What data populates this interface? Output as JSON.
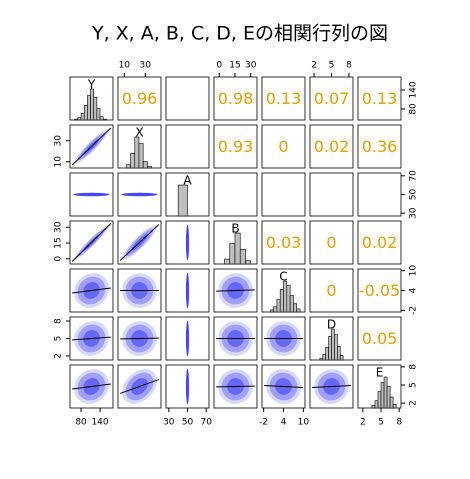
{
  "chart_data": {
    "type": "pairs",
    "title": "Y, X, A, B, C, D, Eの相関行列の図",
    "variables": [
      {
        "name": "Y",
        "lim": [
          45,
          181
        ],
        "ticks": [
          80,
          140
        ],
        "bins": [
          60,
          70,
          80,
          90,
          100,
          110,
          120,
          130,
          140,
          150,
          160
        ],
        "counts": [
          1,
          3,
          8,
          18,
          30,
          38,
          28,
          14,
          4,
          1
        ]
      },
      {
        "name": "X",
        "lim": [
          4,
          45
        ],
        "ticks": [
          10,
          30
        ],
        "bins": [
          12,
          16,
          20,
          24,
          28,
          32,
          36
        ],
        "counts": [
          4,
          18,
          38,
          30,
          8,
          2
        ]
      },
      {
        "name": "A",
        "lim": [
          27,
          73
        ],
        "ticks": [
          30,
          50,
          70
        ],
        "bins": [
          40,
          50
        ],
        "counts": [
          1
        ]
      },
      {
        "name": "B",
        "lim": [
          -5,
          36
        ],
        "ticks": [
          0,
          15,
          30
        ],
        "bins": [
          5,
          10,
          15,
          20,
          25,
          30
        ],
        "counts": [
          6,
          25,
          38,
          18,
          4
        ]
      },
      {
        "name": "C",
        "lim": [
          -2.5,
          10.5
        ],
        "ticks": [
          -2,
          4,
          10
        ],
        "bins": [
          0,
          1,
          2,
          3,
          4,
          5,
          6,
          7,
          8,
          9
        ],
        "counts": [
          2,
          5,
          12,
          22,
          30,
          26,
          16,
          8,
          3
        ]
      },
      {
        "name": "D",
        "lim": [
          1.3,
          8.7
        ],
        "ticks": [
          2,
          5,
          8
        ],
        "bins": [
          3,
          3.5,
          4,
          4.5,
          5,
          5.5,
          6,
          6.5,
          7
        ],
        "counts": [
          2,
          6,
          14,
          26,
          34,
          28,
          15,
          5
        ]
      },
      {
        "name": "E",
        "lim": [
          1.2,
          8.3
        ],
        "ticks": [
          2,
          5,
          8
        ],
        "bins": [
          3.5,
          4,
          4.5,
          5,
          5.5,
          6,
          6.5,
          7,
          7.5
        ],
        "counts": [
          3,
          8,
          18,
          28,
          34,
          24,
          12,
          4
        ]
      }
    ],
    "correlations": [
      [
        0.96,
        null,
        0.98,
        0.13,
        0.07,
        0.13
      ],
      [
        null,
        0.93,
        0,
        0.02,
        0.36
      ],
      [
        null,
        null,
        null,
        null
      ],
      [
        0.03,
        0,
        0.02
      ],
      [
        0,
        -0.05
      ],
      [
        0.05
      ]
    ]
  }
}
